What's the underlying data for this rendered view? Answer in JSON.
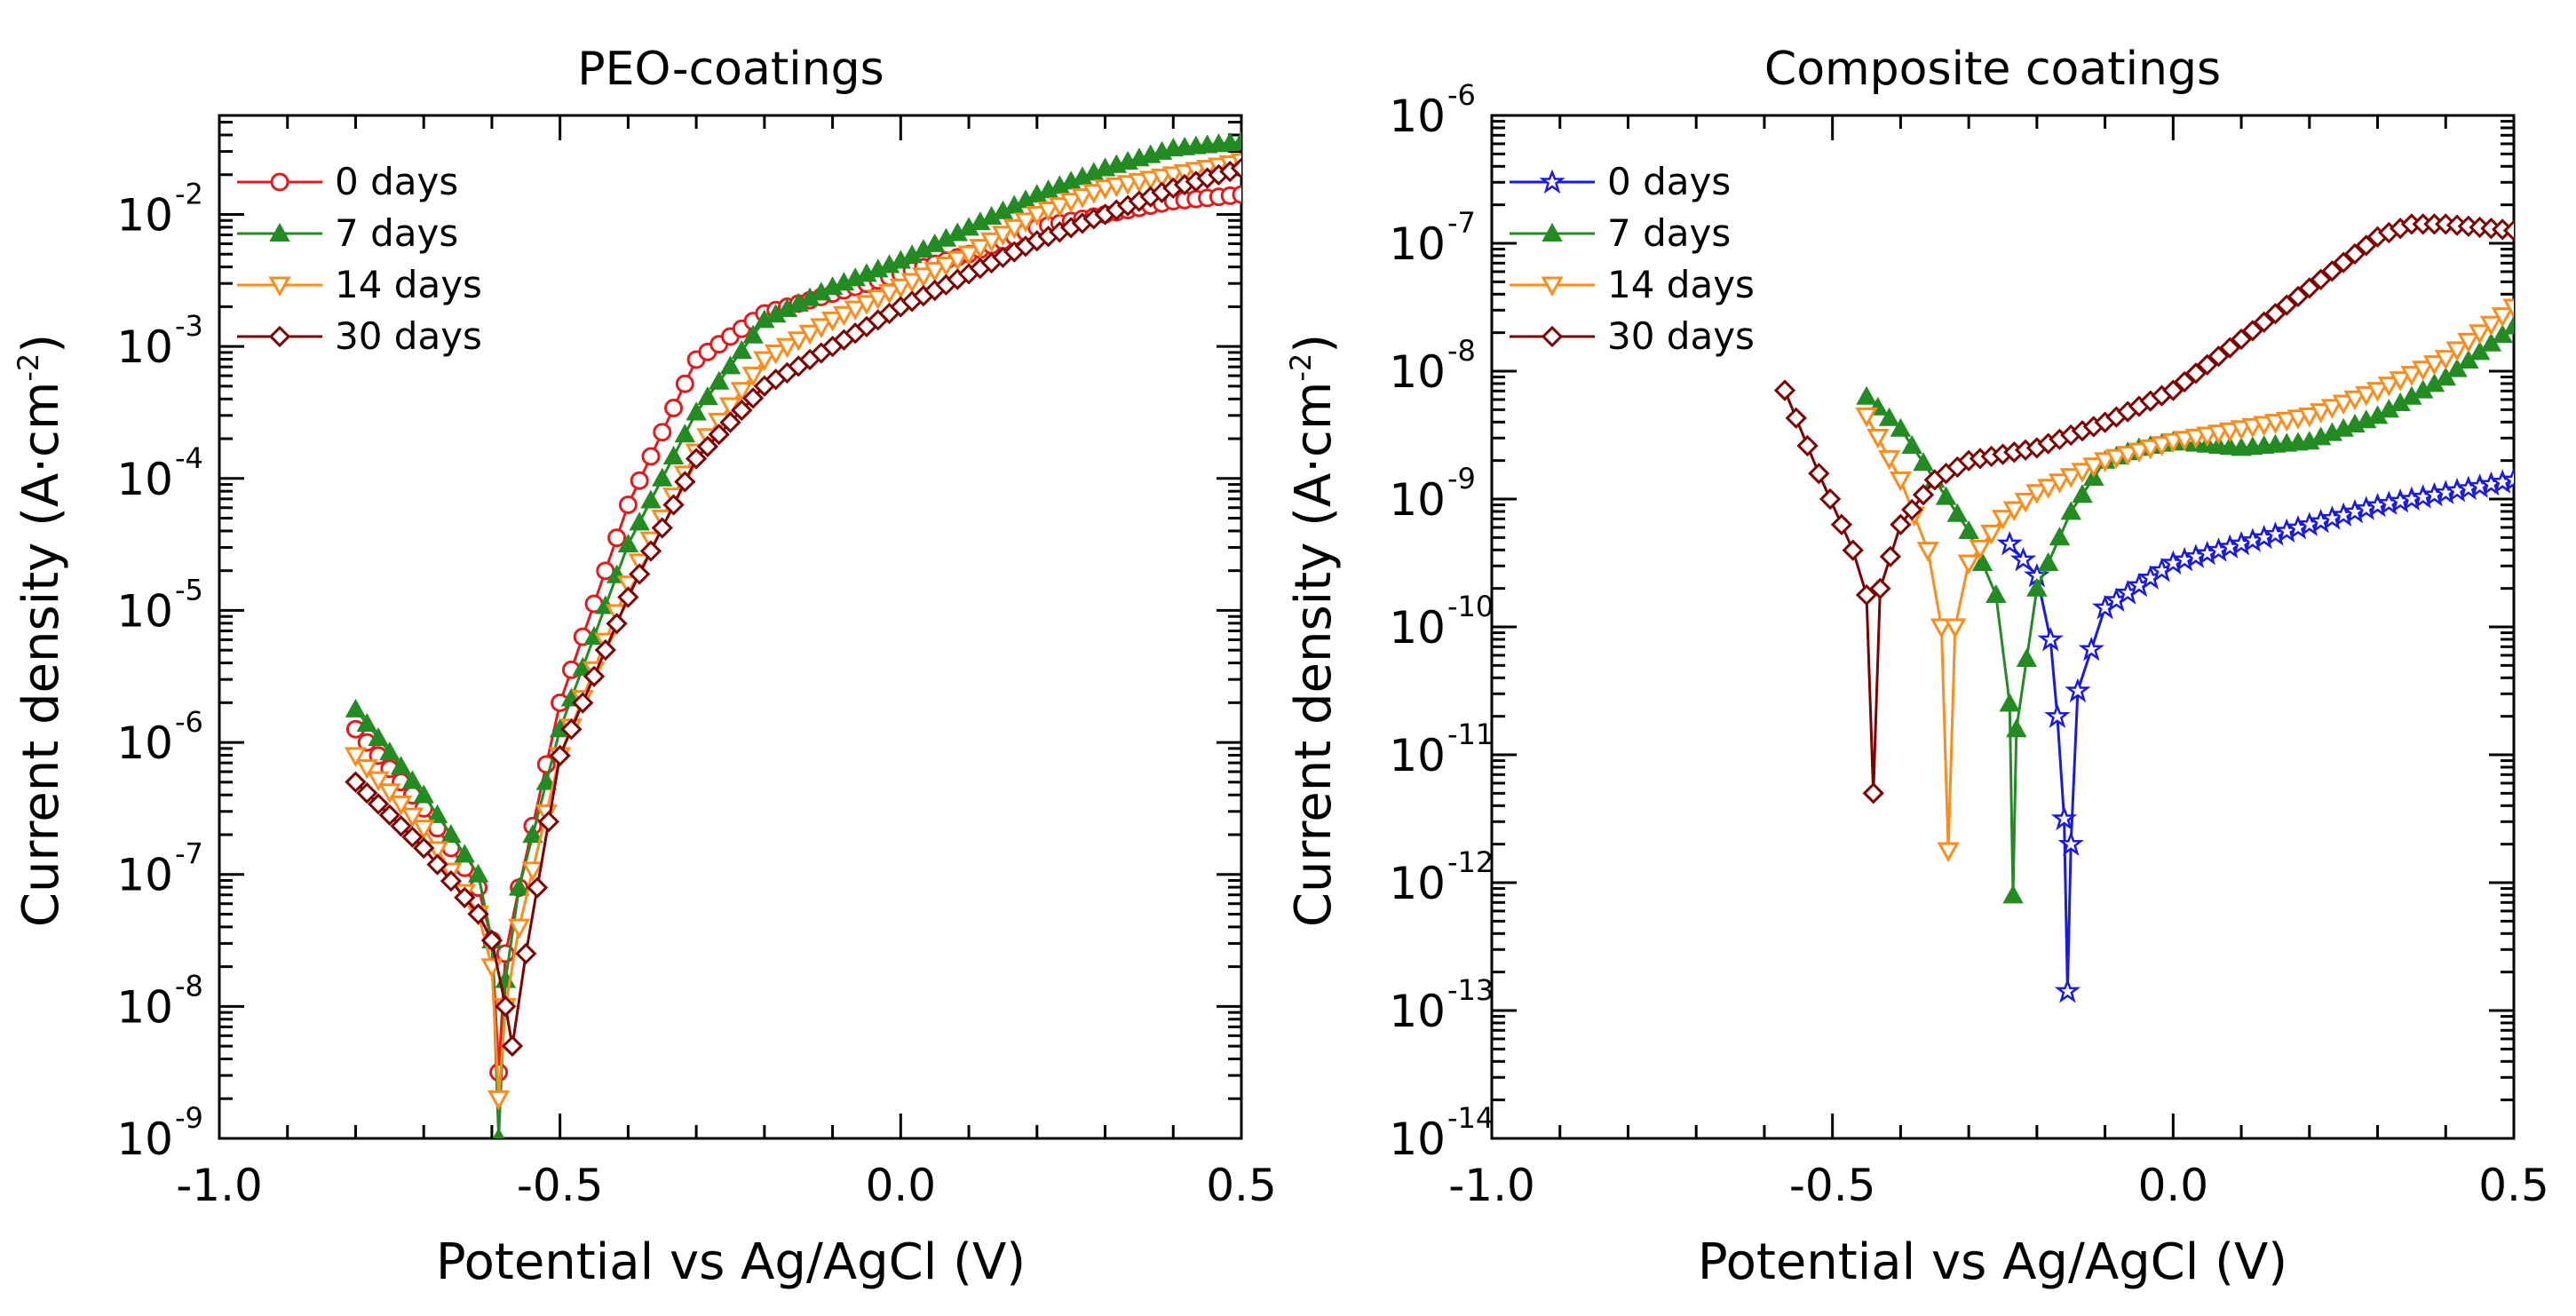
{
  "chart_data": [
    {
      "type": "line",
      "title": "PEO-coatings",
      "xlabel": "Potential vs Ag/AgCl (V)",
      "ylabel": "Current density (A·cm",
      "ylabel_sup": "-2",
      "ylabel_close": ")",
      "xlim": [
        -1.0,
        0.5
      ],
      "ylim_log10": [
        -9,
        -1.25
      ],
      "x_ticks": [
        "-1.0",
        "-0.5",
        "0.0",
        "0.5"
      ],
      "x_tick_values": [
        -1.0,
        -0.5,
        0.0,
        0.5
      ],
      "y_tick_base": "10",
      "y_tick_exponents": [
        "-9",
        "-8",
        "-7",
        "-6",
        "-5",
        "-4",
        "-3",
        "-2"
      ],
      "y_tick_values": [
        -9,
        -8,
        -7,
        -6,
        -5,
        -4,
        -3,
        -2
      ],
      "series": [
        {
          "name": "0 days",
          "color": "#e41a1c",
          "marker": "circle",
          "x": [
            -0.8,
            -0.7,
            -0.62,
            -0.6,
            -0.59,
            -0.58,
            -0.56,
            -0.5,
            -0.4,
            -0.3,
            -0.2,
            -0.1,
            0.0,
            0.1,
            0.2,
            0.3,
            0.4,
            0.5
          ],
          "y_log10": [
            -5.9,
            -6.5,
            -7.1,
            -7.5,
            -8.5,
            -7.6,
            -7.1,
            -5.7,
            -4.2,
            -3.1,
            -2.75,
            -2.6,
            -2.45,
            -2.3,
            -2.1,
            -2.0,
            -1.9,
            -1.85
          ]
        },
        {
          "name": "7 days",
          "color": "#228b22",
          "marker": "triangle-up",
          "x": [
            -0.8,
            -0.7,
            -0.62,
            -0.6,
            -0.59,
            -0.58,
            -0.56,
            -0.5,
            -0.4,
            -0.3,
            -0.2,
            -0.1,
            0.0,
            0.1,
            0.2,
            0.3,
            0.4,
            0.5
          ],
          "y_log10": [
            -5.75,
            -6.4,
            -7.0,
            -7.5,
            -9.0,
            -7.8,
            -7.1,
            -5.9,
            -4.5,
            -3.5,
            -2.8,
            -2.55,
            -2.35,
            -2.1,
            -1.85,
            -1.65,
            -1.5,
            -1.45
          ]
        },
        {
          "name": "14 days",
          "color": "#ff8c1a",
          "marker": "triangle-down",
          "x": [
            -0.8,
            -0.7,
            -0.62,
            -0.6,
            -0.59,
            -0.58,
            -0.56,
            -0.5,
            -0.4,
            -0.3,
            -0.2,
            -0.1,
            0.0,
            0.1,
            0.2,
            0.3,
            0.4,
            0.5
          ],
          "y_log10": [
            -6.1,
            -6.65,
            -7.3,
            -7.7,
            -8.7,
            -8.0,
            -7.4,
            -6.1,
            -4.8,
            -3.8,
            -3.1,
            -2.8,
            -2.55,
            -2.3,
            -2.0,
            -1.8,
            -1.7,
            -1.6
          ]
        },
        {
          "name": "30 days",
          "color": "#800000",
          "marker": "diamond",
          "x": [
            -0.8,
            -0.7,
            -0.62,
            -0.6,
            -0.58,
            -0.57,
            -0.55,
            -0.5,
            -0.4,
            -0.3,
            -0.2,
            -0.1,
            0.0,
            0.1,
            0.2,
            0.3,
            0.4,
            0.5
          ],
          "y_log10": [
            -6.3,
            -6.8,
            -7.3,
            -7.5,
            -8.0,
            -8.3,
            -7.6,
            -6.1,
            -4.9,
            -3.85,
            -3.3,
            -3.0,
            -2.7,
            -2.45,
            -2.2,
            -2.0,
            -1.8,
            -1.65
          ]
        }
      ],
      "legend_position": "top-left"
    },
    {
      "type": "line",
      "title": "Composite coatings",
      "xlabel": "Potential vs Ag/AgCl (V)",
      "ylabel": "Current density (A·cm",
      "ylabel_sup": "-2",
      "ylabel_close": ")",
      "xlim": [
        -1.0,
        0.5
      ],
      "ylim_log10": [
        -14,
        -6
      ],
      "x_ticks": [
        "-1.0",
        "-0.5",
        "0.0",
        "0.5"
      ],
      "x_tick_values": [
        -1.0,
        -0.5,
        0.0,
        0.5
      ],
      "y_tick_base": "10",
      "y_tick_exponents": [
        "-14",
        "-13",
        "-12",
        "-11",
        "-10",
        "-9",
        "-8",
        "-7",
        "-6"
      ],
      "y_tick_values": [
        -14,
        -13,
        -12,
        -11,
        -10,
        -9,
        -8,
        -7,
        -6
      ],
      "series": [
        {
          "name": "0 days",
          "color": "#1a1ae6",
          "marker": "star",
          "x": [
            -0.24,
            -0.2,
            -0.18,
            -0.17,
            -0.16,
            -0.155,
            -0.15,
            -0.14,
            -0.1,
            0.0,
            0.1,
            0.2,
            0.3,
            0.4,
            0.5
          ],
          "y_log10": [
            -9.35,
            -9.6,
            -10.1,
            -10.7,
            -11.5,
            -12.85,
            -11.7,
            -10.5,
            -9.85,
            -9.5,
            -9.35,
            -9.2,
            -9.05,
            -8.95,
            -8.85
          ]
        },
        {
          "name": "7 days",
          "color": "#228b22",
          "marker": "triangle-up",
          "x": [
            -0.45,
            -0.4,
            -0.35,
            -0.3,
            -0.26,
            -0.24,
            -0.235,
            -0.23,
            -0.2,
            -0.15,
            -0.1,
            -0.05,
            0.0,
            0.1,
            0.2,
            0.3,
            0.4,
            0.5
          ],
          "y_log10": [
            -8.2,
            -8.45,
            -8.85,
            -9.25,
            -9.75,
            -10.6,
            -12.1,
            -10.8,
            -9.7,
            -9.1,
            -8.7,
            -8.6,
            -8.55,
            -8.6,
            -8.55,
            -8.35,
            -8.05,
            -7.65
          ]
        },
        {
          "name": "14 days",
          "color": "#ff8c1a",
          "marker": "triangle-down",
          "x": [
            -0.45,
            -0.4,
            -0.36,
            -0.34,
            -0.33,
            -0.32,
            -0.3,
            -0.25,
            -0.2,
            -0.1,
            0.0,
            0.1,
            0.2,
            0.3,
            0.4,
            0.5
          ],
          "y_log10": [
            -8.35,
            -8.85,
            -9.4,
            -10.0,
            -11.75,
            -10.0,
            -9.5,
            -9.15,
            -8.95,
            -8.7,
            -8.55,
            -8.45,
            -8.35,
            -8.15,
            -7.9,
            -7.5
          ]
        },
        {
          "name": "30 days",
          "color": "#800000",
          "marker": "diamond",
          "x": [
            -0.57,
            -0.52,
            -0.47,
            -0.45,
            -0.44,
            -0.43,
            -0.4,
            -0.35,
            -0.3,
            -0.2,
            -0.1,
            0.0,
            0.1,
            0.2,
            0.3,
            0.35,
            0.4,
            0.5
          ],
          "y_log10": [
            -8.15,
            -8.8,
            -9.4,
            -9.75,
            -11.3,
            -9.7,
            -9.2,
            -8.85,
            -8.7,
            -8.6,
            -8.4,
            -8.15,
            -7.75,
            -7.35,
            -6.95,
            -6.85,
            -6.85,
            -6.9
          ]
        }
      ],
      "legend_position": "top-left"
    }
  ]
}
